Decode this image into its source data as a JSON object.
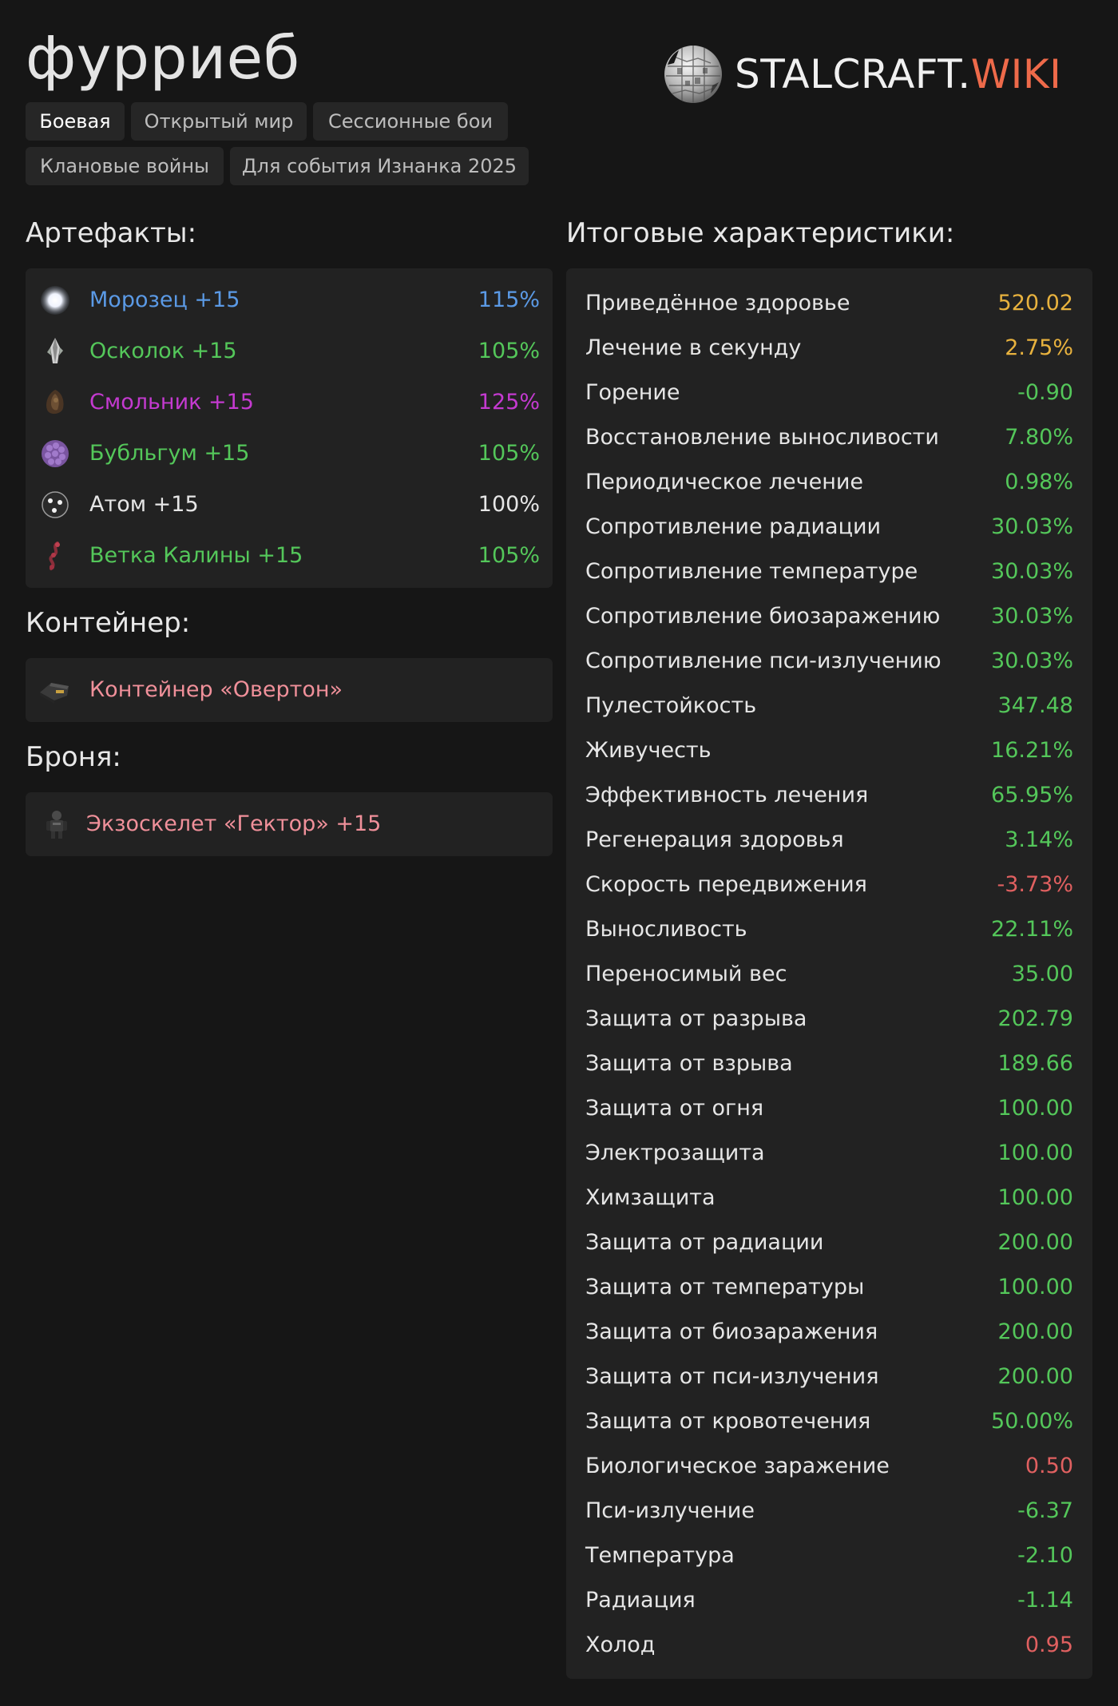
{
  "build_name": "фурриеб",
  "logo": {
    "part1": "STALCRAFT.",
    "part2": "WIKI",
    "globe_icon": "wikipedia-globe-icon"
  },
  "tabs": [
    {
      "label": "Боевая",
      "active": true
    },
    {
      "label": "Открытый мир",
      "active": false
    },
    {
      "label": "Сессионные бои",
      "active": false
    },
    {
      "label": "Клановые войны",
      "active": false
    },
    {
      "label": "Для события Изнанка 2025",
      "active": false
    }
  ],
  "colors": {
    "blue": "#5b9ae6",
    "green": "#54c75a",
    "purple": "#c43ad0",
    "white": "#e6e6e6",
    "pink": "#f0909a",
    "gold": "#e8b23e",
    "red": "#e06060"
  },
  "artifacts": {
    "title": "Артефакты:",
    "items": [
      {
        "name": "Морозец +15",
        "percent": "115%",
        "color": "#5b9ae6",
        "icon": "frost-orb-icon"
      },
      {
        "name": "Осколок +15",
        "percent": "105%",
        "color": "#54c75a",
        "icon": "crystal-shard-icon"
      },
      {
        "name": "Смольник +15",
        "percent": "125%",
        "color": "#c43ad0",
        "icon": "resin-blob-icon"
      },
      {
        "name": "Бубльгум +15",
        "percent": "105%",
        "color": "#54c75a",
        "icon": "bubblegum-cluster-icon"
      },
      {
        "name": "Атом +15",
        "percent": "100%",
        "color": "#e6e6e6",
        "icon": "atom-sphere-icon"
      },
      {
        "name": "Ветка Калины +15",
        "percent": "105%",
        "color": "#54c75a",
        "icon": "viburnum-branch-icon"
      }
    ]
  },
  "container": {
    "title": "Контейнер:",
    "name": "Контейнер «Овертон»",
    "color": "#f0909a",
    "icon": "container-case-icon"
  },
  "armor": {
    "title": "Броня:",
    "name": "Экзоскелет «Гектор» +15",
    "color": "#f0909a",
    "icon": "exoskeleton-icon"
  },
  "stats": {
    "title": "Итоговые характеристики:",
    "items": [
      {
        "label": "Приведённое здоровье",
        "value": "520.02",
        "color": "#e8b23e"
      },
      {
        "label": "Лечение в секунду",
        "value": "2.75%",
        "color": "#e8b23e"
      },
      {
        "label": "Горение",
        "value": "-0.90",
        "color": "#54c75a"
      },
      {
        "label": "Восстановление выносливости",
        "value": "7.80%",
        "color": "#54c75a"
      },
      {
        "label": "Периодическое лечение",
        "value": "0.98%",
        "color": "#54c75a"
      },
      {
        "label": "Сопротивление радиации",
        "value": "30.03%",
        "color": "#54c75a"
      },
      {
        "label": "Сопротивление температуре",
        "value": "30.03%",
        "color": "#54c75a"
      },
      {
        "label": "Сопротивление биозаражению",
        "value": "30.03%",
        "color": "#54c75a"
      },
      {
        "label": "Сопротивление пси-излучению",
        "value": "30.03%",
        "color": "#54c75a"
      },
      {
        "label": "Пулестойкость",
        "value": "347.48",
        "color": "#54c75a"
      },
      {
        "label": "Живучесть",
        "value": "16.21%",
        "color": "#54c75a"
      },
      {
        "label": "Эффективность лечения",
        "value": "65.95%",
        "color": "#54c75a"
      },
      {
        "label": "Регенерация здоровья",
        "value": "3.14%",
        "color": "#54c75a"
      },
      {
        "label": "Скорость передвижения",
        "value": "-3.73%",
        "color": "#e06060"
      },
      {
        "label": "Выносливость",
        "value": "22.11%",
        "color": "#54c75a"
      },
      {
        "label": "Переносимый вес",
        "value": "35.00",
        "color": "#54c75a"
      },
      {
        "label": "Защита от разрыва",
        "value": "202.79",
        "color": "#54c75a"
      },
      {
        "label": "Защита от взрыва",
        "value": "189.66",
        "color": "#54c75a"
      },
      {
        "label": "Защита от огня",
        "value": "100.00",
        "color": "#54c75a"
      },
      {
        "label": "Электрозащита",
        "value": "100.00",
        "color": "#54c75a"
      },
      {
        "label": "Химзащита",
        "value": "100.00",
        "color": "#54c75a"
      },
      {
        "label": "Защита от радиации",
        "value": "200.00",
        "color": "#54c75a"
      },
      {
        "label": "Защита от температуры",
        "value": "100.00",
        "color": "#54c75a"
      },
      {
        "label": "Защита от биозаражения",
        "value": "200.00",
        "color": "#54c75a"
      },
      {
        "label": "Защита от пси-излучения",
        "value": "200.00",
        "color": "#54c75a"
      },
      {
        "label": "Защита от кровотечения",
        "value": "50.00%",
        "color": "#54c75a"
      },
      {
        "label": "Биологическое заражение",
        "value": "0.50",
        "color": "#e06060"
      },
      {
        "label": "Пси-излучение",
        "value": "-6.37",
        "color": "#54c75a"
      },
      {
        "label": "Температура",
        "value": "-2.10",
        "color": "#54c75a"
      },
      {
        "label": "Радиация",
        "value": "-1.14",
        "color": "#54c75a"
      },
      {
        "label": "Холод",
        "value": "0.95",
        "color": "#e06060"
      }
    ]
  }
}
